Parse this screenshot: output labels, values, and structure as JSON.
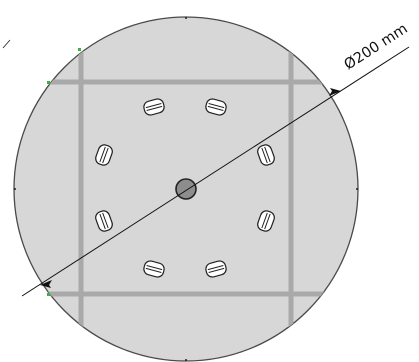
{
  "drawing": {
    "dimension": {
      "label": "Ø200 mm",
      "value": 200,
      "unit": "mm",
      "kind": "diameter"
    },
    "colors": {
      "disc_fill": "#d7d7d7",
      "disc_outline": "#4a4a4a",
      "frame_bars": "#a9a9a9",
      "dimension_line": "#111111",
      "slot_fill": "#ffffff",
      "hub_fill": "#8d8d8d",
      "tick_marks": "#3cb043"
    },
    "features": {
      "center_hub_count": 1,
      "slot_count": 8,
      "frame": "square"
    }
  }
}
